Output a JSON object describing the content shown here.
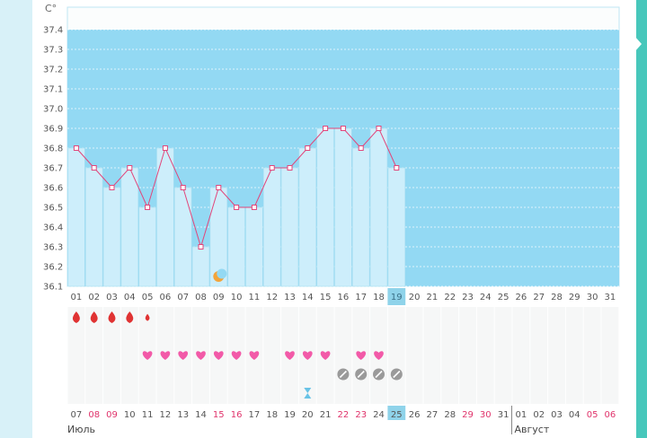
{
  "colors": {
    "page_bg": "#c9ecf7",
    "chart_bg": "#93d9f3",
    "bar_fill": "#cdeefb",
    "line": "#e2457a",
    "grid": "#ffffff",
    "heart": "#f25aa8",
    "drop": "#e03333",
    "pill": "#9a9a9a",
    "today": "#8fd3ea",
    "weekend": "#e0336b"
  },
  "chart_data": {
    "type": "line",
    "unit": "C°",
    "ylim": [
      36.1,
      37.4
    ],
    "yticks": [
      37.4,
      37.3,
      37.2,
      37.1,
      37.0,
      36.9,
      36.8,
      36.7,
      36.6,
      36.5,
      36.4,
      36.3,
      36.2,
      36.1
    ],
    "ytick_labels": [
      "37.4",
      "37.3",
      "37.2",
      "37.1",
      "37.0",
      "36.9",
      "36.8",
      "36.7",
      "36.6",
      "36.5",
      "36.4",
      "36.3",
      "36.2",
      "36.1"
    ],
    "cycle_days": [
      "01",
      "02",
      "03",
      "04",
      "05",
      "06",
      "07",
      "08",
      "09",
      "10",
      "11",
      "12",
      "13",
      "14",
      "15",
      "16",
      "17",
      "18",
      "19",
      "20",
      "21",
      "22",
      "23",
      "24",
      "25",
      "26",
      "27",
      "28",
      "29",
      "30",
      "31"
    ],
    "current_day": "19",
    "series": [
      {
        "values": [
          36.8,
          36.7,
          36.6,
          36.7,
          36.5,
          36.8,
          36.6,
          36.3,
          36.6,
          36.5,
          36.5,
          36.7,
          36.7,
          36.8,
          36.9,
          36.9,
          36.8,
          36.9,
          36.7
        ]
      }
    ],
    "grid": true
  },
  "markers": {
    "menstruation_days": [
      1,
      2,
      3,
      4,
      5
    ],
    "menstruation_small_day": 5,
    "heart_days": [
      5,
      6,
      7,
      8,
      9,
      10,
      11,
      13,
      14,
      15,
      17,
      18
    ],
    "pill_days": [
      16,
      17,
      18,
      19
    ],
    "moon_day": 9,
    "hourglass_day": 14,
    "moon_icon": "crescent-moon-icon",
    "heart_icon": "heart-icon",
    "drop_icon": "blood-drop-icon",
    "pill_icon": "pill-icon",
    "hourglass_icon": "hourglass-icon"
  },
  "calendar": {
    "dates": [
      "07",
      "08",
      "09",
      "10",
      "11",
      "12",
      "13",
      "14",
      "15",
      "16",
      "17",
      "18",
      "19",
      "20",
      "21",
      "22",
      "23",
      "24",
      "25",
      "26",
      "27",
      "28",
      "29",
      "30",
      "31",
      "01",
      "02",
      "03",
      "04",
      "05",
      "06"
    ],
    "weekend_indexes": [
      1,
      2,
      8,
      9,
      15,
      16,
      22,
      23,
      29,
      30
    ],
    "current_index": 18,
    "month_left": "Июль",
    "month_right": "Август",
    "month_break_index": 25
  }
}
